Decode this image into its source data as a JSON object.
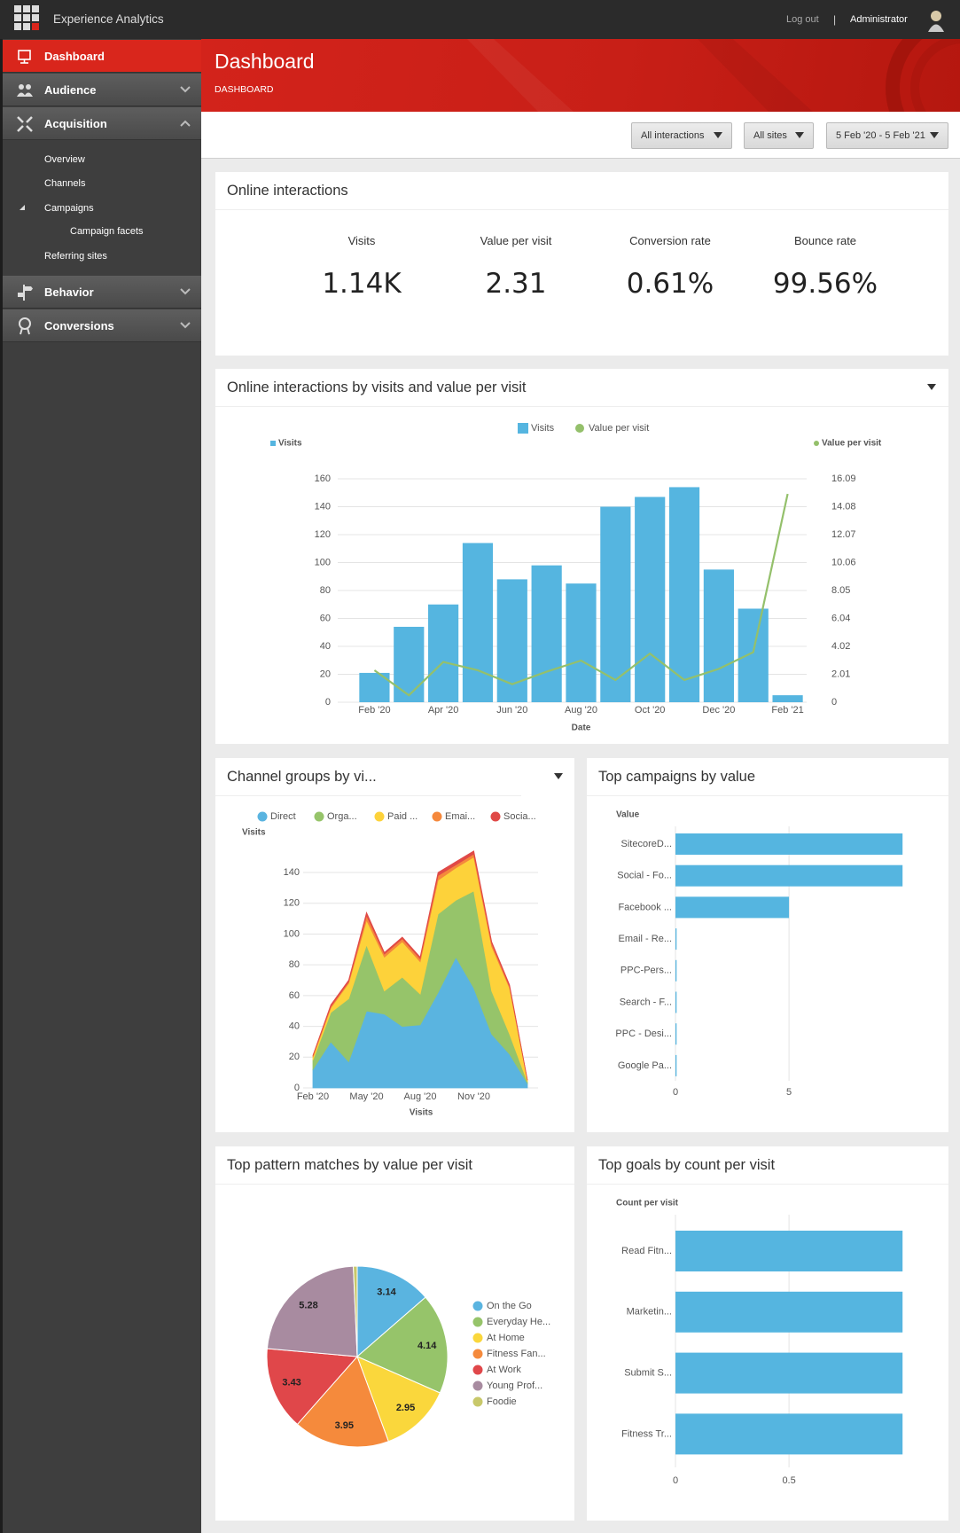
{
  "header": {
    "app_title": "Experience Analytics",
    "logout": "Log out",
    "separator": "|",
    "user": "Administrator"
  },
  "sidebar": {
    "items": [
      {
        "label": "Dashboard"
      },
      {
        "label": "Audience"
      },
      {
        "label": "Acquisition",
        "children": [
          {
            "label": "Overview"
          },
          {
            "label": "Channels"
          },
          {
            "label": "Campaigns",
            "children": [
              {
                "label": "Campaign facets"
              }
            ]
          },
          {
            "label": "Referring sites"
          }
        ]
      },
      {
        "label": "Behavior"
      },
      {
        "label": "Conversions"
      }
    ]
  },
  "page": {
    "title": "Dashboard",
    "breadcrumb": "DASHBOARD"
  },
  "filters": [
    "All interactions",
    "All sites",
    "5 Feb '20 - 5 Feb '21"
  ],
  "kpi_panel": {
    "title": "Online interactions",
    "metrics": [
      {
        "label": "Visits",
        "value": "1.14K"
      },
      {
        "label": "Value per visit",
        "value": "2.31"
      },
      {
        "label": "Conversion rate",
        "value": "0.61%"
      },
      {
        "label": "Bounce rate",
        "value": "99.56%"
      }
    ]
  },
  "chart_data": [
    {
      "type": "combo",
      "title": "Online interactions by visits and value per visit",
      "y_label": "Visits",
      "y2_label": "Value per visit",
      "x_label": "Date",
      "categories": [
        "Feb '20",
        null,
        "Apr '20",
        null,
        "Jun '20",
        null,
        "Aug '20",
        null,
        "Oct '20",
        null,
        "Dec '20",
        null,
        "Feb '21"
      ],
      "series": [
        {
          "name": "Visits",
          "type": "bar",
          "color": "#55b5e0",
          "values": [
            21,
            54,
            70,
            114,
            88,
            98,
            85,
            140,
            147,
            154,
            95,
            67,
            5
          ]
        },
        {
          "name": "Value per visit",
          "type": "line",
          "axis": "y2",
          "color": "#94c06b",
          "values": [
            2.3,
            0.5,
            2.9,
            2.3,
            1.3,
            2.2,
            3.0,
            1.6,
            3.5,
            1.6,
            2.4,
            3.6,
            15.0
          ]
        }
      ],
      "ylim": [
        0,
        160
      ],
      "yticks": [
        0,
        20,
        40,
        60,
        80,
        100,
        120,
        140,
        160
      ],
      "y2lim": [
        0,
        16.09
      ],
      "y2ticks": [
        0,
        2.01,
        4.02,
        6.04,
        8.05,
        10.06,
        12.07,
        14.08,
        16.09
      ],
      "grid": true
    },
    {
      "type": "area",
      "stacked": true,
      "title": "Channel groups by vi...",
      "y_label": "Visits",
      "x_label": "Visits",
      "categories": [
        "Feb '20",
        null,
        null,
        "May '20",
        null,
        null,
        "Aug '20",
        null,
        null,
        "Nov '20",
        null,
        null,
        null
      ],
      "series": [
        {
          "name": "Direct",
          "color": "#5ab4e0",
          "values": [
            12,
            30,
            17,
            50,
            48,
            40,
            41,
            62,
            85,
            65,
            35,
            22,
            3
          ]
        },
        {
          "name": "Orga...",
          "color": "#96c46a",
          "values": [
            6,
            19,
            41,
            43,
            15,
            32,
            20,
            51,
            37,
            63,
            28,
            13,
            1
          ]
        },
        {
          "name": "Paid ...",
          "color": "#fdd23a",
          "values": [
            2,
            3,
            10,
            16,
            22,
            23,
            21,
            22,
            21,
            22,
            29,
            30,
            1
          ]
        },
        {
          "name": "Emai...",
          "color": "#f5883c",
          "values": [
            1,
            1,
            1,
            3,
            2,
            2,
            2,
            3,
            2,
            2,
            2,
            1,
            0
          ]
        },
        {
          "name": "Socia...",
          "color": "#e04a47",
          "values": [
            0,
            1,
            1,
            2,
            1,
            1,
            1,
            2,
            2,
            2,
            1,
            1,
            0
          ]
        }
      ],
      "ylim": [
        0,
        155
      ],
      "yticks": [
        0,
        20,
        40,
        60,
        80,
        100,
        120,
        140
      ],
      "grid": true
    },
    {
      "type": "barh",
      "title": "Top campaigns by value",
      "x_label": "Value",
      "categories": [
        "SitecoreD...",
        "Social - Fo...",
        "Facebook ...",
        "Email - Re...",
        "PPC-Pers...",
        "Search - F...",
        "PPC - Desi...",
        "Google Pa..."
      ],
      "values": [
        10,
        10,
        5,
        0.05,
        0.05,
        0.05,
        0.05,
        0.05
      ],
      "color": "#55b5e0",
      "xlim": [
        0,
        10.5
      ],
      "xticks": [
        0,
        5
      ],
      "grid": true
    },
    {
      "type": "pie",
      "title": "Top pattern matches by value per visit",
      "categories": [
        "On the Go",
        "Everyday He...",
        "At Home",
        "Fitness Fan...",
        "At Work",
        "Young Prof...",
        "Foodie"
      ],
      "values": [
        3.14,
        4.14,
        2.95,
        3.95,
        3.43,
        5.28,
        0.16
      ],
      "value_labels": [
        "3.14",
        "4.14",
        "2.95",
        "3.95",
        "3.43",
        "5.28",
        null
      ],
      "colors": [
        "#5ab4e0",
        "#96c46a",
        "#fad73c",
        "#f58a3c",
        "#e0474a",
        "#a88ba0",
        "#c8c86a"
      ]
    },
    {
      "type": "barh",
      "title": "Top goals by count per visit",
      "x_label": "Count per visit",
      "categories": [
        "Read Fitn...",
        "Marketin...",
        "Submit S...",
        "Fitness Tr..."
      ],
      "values": [
        1,
        1,
        1,
        1
      ],
      "color": "#55b5e0",
      "xlim": [
        0,
        1.05
      ],
      "xticks": [
        0,
        0.5
      ],
      "grid": true
    }
  ]
}
